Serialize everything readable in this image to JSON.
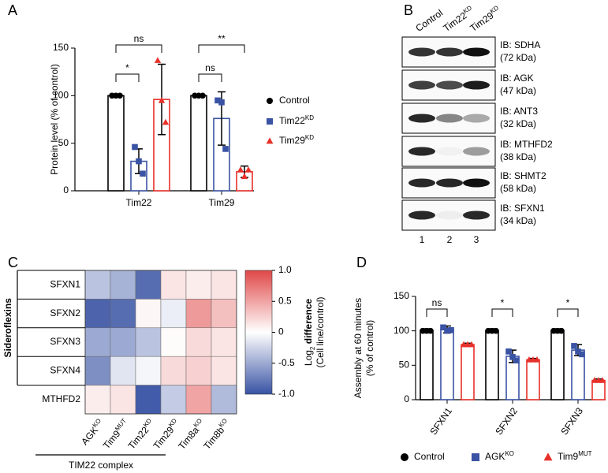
{
  "panels": [
    "A",
    "B",
    "C",
    "D"
  ],
  "blot": {
    "lanes": [
      {
        "name": "Control"
      },
      {
        "name": "Tim22",
        "name_sup": "KD"
      },
      {
        "name": "Tim29",
        "name_sup": "KD"
      }
    ],
    "lane_numbers": [
      "1",
      "2",
      "3"
    ],
    "rows": [
      {
        "antibody": "IB: SDHA",
        "size": "(72 kDa)"
      },
      {
        "antibody": "IB: AGK",
        "size": "(47 kDa)"
      },
      {
        "antibody": "IB: ANT3",
        "size": "(32 kDa)"
      },
      {
        "antibody": "IB: MTHFD2",
        "size": "(38 kDa)"
      },
      {
        "antibody": "IB: SHMT2",
        "size": "(58 kDa)"
      },
      {
        "antibody": "IB: SFXN1",
        "size": "(34 kDa)"
      }
    ]
  },
  "chart_data": [
    {
      "type": "bar",
      "ylabel": [
        "Protein level (% of control)"
      ],
      "categories": [
        "Tim22",
        "Tim29"
      ],
      "ylim": [
        0,
        150
      ],
      "yticks": [
        0,
        50,
        100,
        150
      ],
      "legend": "right",
      "series": [
        {
          "name": "Control",
          "color": "#000000",
          "marker": "circle",
          "values": [
            100,
            100
          ],
          "errors": [
            0,
            0
          ],
          "points": [
            [
              100,
              100,
              100
            ],
            [
              100,
              100,
              100
            ]
          ]
        },
        {
          "name": "Tim22",
          "name_sup": "KD",
          "color": "#3a53a4",
          "marker": "square",
          "values": [
            31,
            76
          ],
          "errors": [
            13,
            28
          ],
          "points": [
            [
              46,
              31,
              18
            ],
            [
              95,
              93,
              44
            ]
          ]
        },
        {
          "name": "Tim29",
          "name_sup": "KD",
          "color": "#e8302a",
          "marker": "triangle",
          "values": [
            96,
            20
          ],
          "errors": [
            37,
            6
          ],
          "points": [
            [
              137,
              95,
              72
            ],
            [
              22,
              15,
              22
            ]
          ]
        }
      ],
      "annotations": [
        {
          "text": "*",
          "category": 0,
          "pair": [
            0,
            1
          ]
        },
        {
          "text": "ns",
          "category": 0,
          "pair": [
            0,
            2
          ]
        },
        {
          "text": "ns",
          "category": 1,
          "pair": [
            0,
            1
          ]
        },
        {
          "text": "**",
          "category": 1,
          "pair": [
            0,
            2
          ]
        }
      ]
    },
    {
      "type": "heatmap",
      "rows": [
        "SFXN1",
        "SFXN2",
        "SFXN3",
        "SFXN4",
        "MTHFD2"
      ],
      "row_group": "Sideroflexins",
      "columns": [
        {
          "name": "AGK",
          "name_sup": "KO"
        },
        {
          "name": "Tim9",
          "name_sup": "MUT"
        },
        {
          "name": "Tim22",
          "name_sup": "KD"
        },
        {
          "name": "Tim29",
          "name_sup": "KD"
        },
        {
          "name": "Tim8a",
          "name_sup": "KO"
        },
        {
          "name": "Tim8b",
          "name_sup": "KO"
        }
      ],
      "column_group": "TIM22 complex",
      "values": [
        [
          -0.35,
          -0.45,
          -0.85,
          0.15,
          0.1,
          0.15
        ],
        [
          -0.9,
          -0.85,
          0.05,
          -0.1,
          0.55,
          0.35
        ],
        [
          -0.5,
          -0.5,
          -0.35,
          0.02,
          0.2,
          0.15
        ],
        [
          -0.65,
          -0.15,
          -0.05,
          0.2,
          0.25,
          0.15
        ],
        [
          0.1,
          0.15,
          -0.95,
          -0.3,
          0.5,
          -0.4
        ]
      ],
      "zlim": [
        -1,
        1
      ],
      "cmap": [
        "#3953a4",
        "#ffffff",
        "#e04848"
      ],
      "zticks": [
        {
          "value": 1,
          "label": "1.0"
        },
        0.5,
        0,
        -0.5,
        {
          "value": -1,
          "label": "-1.0"
        }
      ],
      "colorbar_label": {
        "text": "Log",
        "sub": "2",
        "bold": "difference",
        "line2": "(Cell line/control)"
      }
    },
    {
      "type": "bar",
      "ylabel": [
        "Assembly at 60 minutes",
        "(% of control)"
      ],
      "categories": [
        "SFXN1",
        "SFXN2",
        "SFXN3"
      ],
      "ylim": [
        0,
        150
      ],
      "yticks": [
        0,
        50,
        100,
        150
      ],
      "legend": "bottom",
      "series": [
        {
          "name": "Control",
          "color": "#000000",
          "marker": "circle",
          "values": [
            100,
            100,
            100
          ],
          "errors": [
            3,
            3,
            3
          ],
          "points": [
            [
              100,
              100,
              100
            ],
            [
              100,
              100,
              100
            ],
            [
              100,
              100,
              100
            ]
          ]
        },
        {
          "name": "AGK",
          "name_sup": "KO",
          "color": "#3a53a4",
          "marker": "square",
          "values": [
            102,
            63,
            72
          ],
          "errors": [
            5,
            9,
            8
          ],
          "points": [
            [
              105,
              100,
              101
            ],
            [
              70,
              62,
              57
            ],
            [
              78,
              70,
              66
            ]
          ]
        },
        {
          "name": "Tim9",
          "name_sup": "MUT",
          "color": "#e8302a",
          "marker": "triangle",
          "values": [
            80,
            58,
            28
          ],
          "errors": [
            2,
            2,
            2
          ],
          "points": [
            [
              80,
              80,
              80
            ],
            [
              58,
              58,
              58
            ],
            [
              28,
              28,
              28
            ]
          ]
        }
      ],
      "annotations": [
        {
          "text": "ns",
          "category": 0,
          "pair": [
            0,
            1
          ]
        },
        {
          "text": "*",
          "category": 1,
          "pair": [
            0,
            1
          ]
        },
        {
          "text": "*",
          "category": 2,
          "pair": [
            0,
            1
          ]
        }
      ]
    }
  ]
}
